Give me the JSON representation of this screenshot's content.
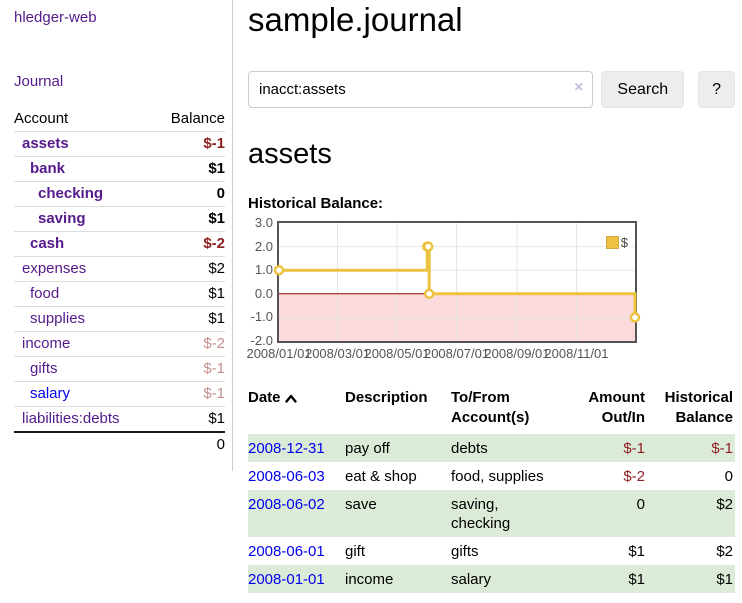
{
  "app": {
    "title": "hledger-web",
    "nav": {
      "journal": "Journal"
    }
  },
  "colors": {
    "link_purple": "#551a8b",
    "link_blue": "#0000ee",
    "negative_strong": "#8e1f1f",
    "negative_faded": "#c58f8f",
    "row_stripe_green": "#dcead8",
    "series_gold": "#EDC240"
  },
  "sidebar": {
    "header": {
      "account": "Account",
      "balance": "Balance"
    },
    "accounts": [
      {
        "name": "assets",
        "balance": "$-1"
      },
      {
        "name": "bank",
        "balance": "$1"
      },
      {
        "name": "checking",
        "balance": "0"
      },
      {
        "name": "saving",
        "balance": "$1"
      },
      {
        "name": "cash",
        "balance": "$-2"
      },
      {
        "name": "expenses",
        "balance": "$2"
      },
      {
        "name": "food",
        "balance": "$1"
      },
      {
        "name": "supplies",
        "balance": "$1"
      },
      {
        "name": "income",
        "balance": "$-2"
      },
      {
        "name": "gifts",
        "balance": "$-1"
      },
      {
        "name": "salary",
        "balance": "$-1"
      },
      {
        "name": "liabilities:debts",
        "balance": "$1"
      }
    ],
    "total": "0"
  },
  "main": {
    "title": "sample.journal",
    "account_heading": "assets",
    "chart_label": "Historical Balance:"
  },
  "search": {
    "value": "inacct:assets",
    "clear": "×",
    "submit": "Search",
    "help": "?"
  },
  "chart_data": {
    "type": "line",
    "title": "Historical Balance",
    "legend": [
      {
        "label": "$",
        "color": "#EDC240"
      }
    ],
    "legend_position": "top-right",
    "x_range": [
      "2008-01-01",
      "2008-12-31"
    ],
    "ylim": [
      -2,
      3
    ],
    "grid": true,
    "xticks": [
      {
        "date": "2008-01-01",
        "label": "2008/01/01"
      },
      {
        "date": "2008-03-01",
        "label": "2008/03/01"
      },
      {
        "date": "2008-05-01",
        "label": "2008/05/01"
      },
      {
        "date": "2008-07-01",
        "label": "2008/07/01"
      },
      {
        "date": "2008-09-01",
        "label": "2008/09/01"
      },
      {
        "date": "2008-11-01",
        "label": "2008/11/01"
      }
    ],
    "yticks": [
      {
        "value": 3,
        "label": "3.0"
      },
      {
        "value": 2,
        "label": "2.0"
      },
      {
        "value": 1,
        "label": "1.0"
      },
      {
        "value": 0,
        "label": "0.0"
      },
      {
        "value": -1,
        "label": "-1.0"
      },
      {
        "value": -2,
        "label": "-2.0"
      }
    ],
    "series": [
      {
        "name": "$",
        "color": "#EDC240",
        "step": true,
        "points": [
          [
            "2008-01-01",
            1
          ],
          [
            "2008-06-01",
            2
          ],
          [
            "2008-06-02",
            2
          ],
          [
            "2008-06-03",
            0
          ],
          [
            "2008-12-31",
            -1
          ]
        ]
      }
    ],
    "negative_region_color": "#fadada",
    "zero_line_color": "#8b0000",
    "grid_color": "#e6e6e6",
    "border_color": "#545454"
  },
  "register": {
    "columns": {
      "date": "Date",
      "description": "Description",
      "accounts": "To/From Account(s)",
      "amount": "Amount Out/In",
      "balance": "Historical Balance"
    },
    "rows": [
      {
        "date": "2008-12-31",
        "description": "pay off",
        "accounts": "debts",
        "amount": "$-1",
        "balance": "$-1"
      },
      {
        "date": "2008-06-03",
        "description": "eat & shop",
        "accounts": "food, supplies",
        "amount": "$-2",
        "balance": "0"
      },
      {
        "date": "2008-06-02",
        "description": "save",
        "accounts": "saving, checking",
        "amount": "0",
        "balance": "$2"
      },
      {
        "date": "2008-06-01",
        "description": "gift",
        "accounts": "gifts",
        "amount": "$1",
        "balance": "$2"
      },
      {
        "date": "2008-01-01",
        "description": "income",
        "accounts": "salary",
        "amount": "$1",
        "balance": "$1"
      }
    ]
  }
}
